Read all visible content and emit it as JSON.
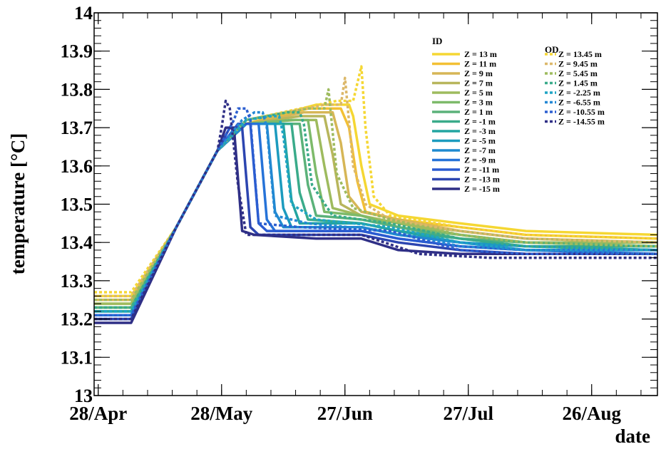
{
  "chart_data": {
    "type": "line",
    "xlabel": "date",
    "ylabel": "temperature [°C]",
    "x_range": [
      "2019-04-27",
      "2019-09-11"
    ],
    "xlim_note": "",
    "ylim": [
      13.0,
      14.0
    ],
    "y_ticks": [
      "13",
      "13.1",
      "13.2",
      "13.3",
      "13.4",
      "13.5",
      "13.6",
      "13.7",
      "13.8",
      "13.9",
      "14"
    ],
    "x_ticks": [
      {
        "label": "28/Apr",
        "date": "2019-04-28"
      },
      {
        "label": "28/May",
        "date": "2019-05-28"
      },
      {
        "label": "27/Jun",
        "date": "2019-06-27"
      },
      {
        "label": "27/Jul",
        "date": "2019-07-27"
      },
      {
        "label": "26/Aug",
        "date": "2019-08-26"
      }
    ],
    "grid": false,
    "legend": {
      "placement": "top-right",
      "groups": [
        {
          "title": "ID",
          "style": "solid"
        },
        {
          "title": "OD",
          "style": "dotted"
        }
      ]
    },
    "series": [
      {
        "name": "Z = 13 m",
        "group": "ID",
        "style": "solid",
        "color": "#f5d733",
        "x": [
          "2019-04-27",
          "2019-05-06",
          "2019-05-17",
          "2019-05-27",
          "2019-06-03",
          "2019-06-20",
          "2019-06-28",
          "2019-06-29",
          "2019-07-01",
          "2019-07-03",
          "2019-07-10",
          "2019-07-25",
          "2019-08-10",
          "2019-09-11"
        ],
        "y": [
          13.26,
          13.26,
          13.44,
          13.64,
          13.71,
          13.76,
          13.76,
          13.73,
          13.6,
          13.5,
          13.47,
          13.45,
          13.43,
          13.42
        ]
      },
      {
        "name": "Z = 11 m",
        "group": "ID",
        "style": "solid",
        "color": "#f3c034",
        "x": [
          "2019-04-27",
          "2019-05-06",
          "2019-05-17",
          "2019-05-27",
          "2019-06-03",
          "2019-06-18",
          "2019-06-26",
          "2019-06-28",
          "2019-06-30",
          "2019-07-02",
          "2019-07-10",
          "2019-07-25",
          "2019-08-10",
          "2019-09-11"
        ],
        "y": [
          13.25,
          13.25,
          13.44,
          13.64,
          13.71,
          13.75,
          13.75,
          13.7,
          13.56,
          13.48,
          13.46,
          13.44,
          13.42,
          13.41
        ]
      },
      {
        "name": "Z = 9 m",
        "group": "ID",
        "style": "solid",
        "color": "#d6b656",
        "x": [
          "2019-04-27",
          "2019-05-06",
          "2019-05-17",
          "2019-05-27",
          "2019-06-03",
          "2019-06-17",
          "2019-06-24",
          "2019-06-26",
          "2019-06-28",
          "2019-07-01",
          "2019-07-10",
          "2019-07-25",
          "2019-08-10",
          "2019-09-11"
        ],
        "y": [
          13.25,
          13.25,
          13.44,
          13.64,
          13.71,
          13.74,
          13.74,
          13.66,
          13.52,
          13.48,
          13.46,
          13.43,
          13.41,
          13.4
        ]
      },
      {
        "name": "Z = 7 m",
        "group": "ID",
        "style": "solid",
        "color": "#b8b65c",
        "x": [
          "2019-04-27",
          "2019-05-06",
          "2019-05-17",
          "2019-05-27",
          "2019-06-03",
          "2019-06-16",
          "2019-06-22",
          "2019-06-24",
          "2019-06-26",
          "2019-07-01",
          "2019-07-10",
          "2019-07-25",
          "2019-08-10",
          "2019-09-11"
        ],
        "y": [
          13.24,
          13.24,
          13.44,
          13.64,
          13.71,
          13.73,
          13.73,
          13.63,
          13.5,
          13.47,
          13.45,
          13.43,
          13.41,
          13.4
        ]
      },
      {
        "name": "Z = 5 m",
        "group": "ID",
        "style": "solid",
        "color": "#9ebb5e",
        "x": [
          "2019-04-27",
          "2019-05-06",
          "2019-05-17",
          "2019-05-27",
          "2019-06-03",
          "2019-06-15",
          "2019-06-20",
          "2019-06-22",
          "2019-06-24",
          "2019-07-01",
          "2019-07-10",
          "2019-07-25",
          "2019-08-10",
          "2019-09-11"
        ],
        "y": [
          13.24,
          13.24,
          13.44,
          13.64,
          13.71,
          13.72,
          13.72,
          13.6,
          13.49,
          13.47,
          13.45,
          13.42,
          13.4,
          13.4
        ]
      },
      {
        "name": "Z = 3 m",
        "group": "ID",
        "style": "solid",
        "color": "#7dba6a",
        "x": [
          "2019-04-27",
          "2019-05-06",
          "2019-05-17",
          "2019-05-27",
          "2019-06-03",
          "2019-06-14",
          "2019-06-18",
          "2019-06-20",
          "2019-06-22",
          "2019-07-01",
          "2019-07-10",
          "2019-07-25",
          "2019-08-10",
          "2019-09-11"
        ],
        "y": [
          13.23,
          13.23,
          13.44,
          13.64,
          13.71,
          13.72,
          13.72,
          13.58,
          13.48,
          13.47,
          13.44,
          13.42,
          13.4,
          13.39
        ]
      },
      {
        "name": "Z = 1 m",
        "group": "ID",
        "style": "solid",
        "color": "#5bb27a",
        "x": [
          "2019-04-27",
          "2019-05-06",
          "2019-05-17",
          "2019-05-27",
          "2019-06-03",
          "2019-06-12",
          "2019-06-16",
          "2019-06-18",
          "2019-06-20",
          "2019-07-01",
          "2019-07-10",
          "2019-07-25",
          "2019-08-10",
          "2019-09-11"
        ],
        "y": [
          13.23,
          13.23,
          13.44,
          13.64,
          13.71,
          13.71,
          13.71,
          13.55,
          13.47,
          13.46,
          13.44,
          13.41,
          13.4,
          13.39
        ]
      },
      {
        "name": "Z = -1 m",
        "group": "ID",
        "style": "solid",
        "color": "#3aab8a",
        "x": [
          "2019-04-27",
          "2019-05-06",
          "2019-05-17",
          "2019-05-27",
          "2019-06-03",
          "2019-06-11",
          "2019-06-14",
          "2019-06-16",
          "2019-06-18",
          "2019-07-01",
          "2019-07-10",
          "2019-07-25",
          "2019-08-10",
          "2019-09-11"
        ],
        "y": [
          13.22,
          13.22,
          13.44,
          13.64,
          13.71,
          13.71,
          13.71,
          13.53,
          13.46,
          13.45,
          13.43,
          13.41,
          13.39,
          13.39
        ]
      },
      {
        "name": "Z = -3 m",
        "group": "ID",
        "style": "solid",
        "color": "#23a5a1",
        "x": [
          "2019-04-27",
          "2019-05-06",
          "2019-05-17",
          "2019-05-27",
          "2019-06-03",
          "2019-06-09",
          "2019-06-12",
          "2019-06-14",
          "2019-06-16",
          "2019-07-01",
          "2019-07-10",
          "2019-07-25",
          "2019-08-10",
          "2019-09-11"
        ],
        "y": [
          13.22,
          13.22,
          13.44,
          13.64,
          13.71,
          13.71,
          13.71,
          13.51,
          13.45,
          13.45,
          13.43,
          13.4,
          13.39,
          13.38
        ]
      },
      {
        "name": "Z = -5 m",
        "group": "ID",
        "style": "solid",
        "color": "#1c9bbe",
        "x": [
          "2019-04-27",
          "2019-05-06",
          "2019-05-17",
          "2019-05-27",
          "2019-06-03",
          "2019-06-08",
          "2019-06-10",
          "2019-06-12",
          "2019-06-14",
          "2019-07-01",
          "2019-07-10",
          "2019-07-25",
          "2019-08-10",
          "2019-09-11"
        ],
        "y": [
          13.21,
          13.21,
          13.44,
          13.64,
          13.71,
          13.71,
          13.71,
          13.49,
          13.44,
          13.44,
          13.42,
          13.4,
          13.39,
          13.38
        ]
      },
      {
        "name": "Z = -7 m",
        "group": "ID",
        "style": "solid",
        "color": "#1f8ad0",
        "x": [
          "2019-04-27",
          "2019-05-06",
          "2019-05-17",
          "2019-05-27",
          "2019-06-03",
          "2019-06-06",
          "2019-06-08",
          "2019-06-10",
          "2019-06-12",
          "2019-07-01",
          "2019-07-10",
          "2019-07-25",
          "2019-08-10",
          "2019-09-11"
        ],
        "y": [
          13.21,
          13.21,
          13.44,
          13.64,
          13.71,
          13.71,
          13.71,
          13.48,
          13.44,
          13.44,
          13.42,
          13.4,
          13.38,
          13.38
        ]
      },
      {
        "name": "Z = -9 m",
        "group": "ID",
        "style": "solid",
        "color": "#2673d8",
        "x": [
          "2019-04-27",
          "2019-05-06",
          "2019-05-17",
          "2019-05-27",
          "2019-06-02",
          "2019-06-04",
          "2019-06-06",
          "2019-06-08",
          "2019-06-10",
          "2019-07-01",
          "2019-07-10",
          "2019-07-25",
          "2019-08-10",
          "2019-09-11"
        ],
        "y": [
          13.21,
          13.21,
          13.44,
          13.64,
          13.71,
          13.71,
          13.71,
          13.46,
          13.43,
          13.43,
          13.41,
          13.39,
          13.38,
          13.38
        ]
      },
      {
        "name": "Z = -11 m",
        "group": "ID",
        "style": "solid",
        "color": "#2a5bd1",
        "x": [
          "2019-04-27",
          "2019-05-06",
          "2019-05-17",
          "2019-05-27",
          "2019-06-01",
          "2019-06-02",
          "2019-06-04",
          "2019-06-06",
          "2019-06-08",
          "2019-07-01",
          "2019-07-10",
          "2019-07-25",
          "2019-08-10",
          "2019-09-11"
        ],
        "y": [
          13.2,
          13.2,
          13.44,
          13.64,
          13.71,
          13.71,
          13.71,
          13.45,
          13.43,
          13.43,
          13.41,
          13.39,
          13.38,
          13.37
        ]
      },
      {
        "name": "Z = -13 m",
        "group": "ID",
        "style": "solid",
        "color": "#2c45b0",
        "x": [
          "2019-04-27",
          "2019-05-06",
          "2019-05-17",
          "2019-05-27",
          "2019-05-30",
          "2019-05-31",
          "2019-06-02",
          "2019-06-04",
          "2019-06-06",
          "2019-07-01",
          "2019-07-10",
          "2019-07-25",
          "2019-08-10",
          "2019-09-11"
        ],
        "y": [
          13.2,
          13.2,
          13.44,
          13.64,
          13.7,
          13.7,
          13.7,
          13.44,
          13.42,
          13.42,
          13.4,
          13.38,
          13.37,
          13.37
        ]
      },
      {
        "name": "Z = -15 m",
        "group": "ID",
        "style": "solid",
        "color": "#2f2f86",
        "x": [
          "2019-04-27",
          "2019-05-06",
          "2019-05-17",
          "2019-05-27",
          "2019-05-29",
          "2019-05-30",
          "2019-05-31",
          "2019-06-02",
          "2019-06-05",
          "2019-06-20",
          "2019-07-01",
          "2019-07-10",
          "2019-07-25",
          "2019-09-11"
        ],
        "y": [
          13.19,
          13.19,
          13.44,
          13.64,
          13.7,
          13.7,
          13.7,
          13.43,
          13.42,
          13.41,
          13.41,
          13.38,
          13.37,
          13.37
        ]
      },
      {
        "name": "Z = 13.45 m",
        "group": "OD",
        "style": "dotted",
        "color": "#f5d733",
        "x": [
          "2019-04-27",
          "2019-05-06",
          "2019-05-17",
          "2019-05-27",
          "2019-06-03",
          "2019-06-25",
          "2019-06-29",
          "2019-07-01",
          "2019-07-02",
          "2019-07-04",
          "2019-07-08",
          "2019-07-25",
          "2019-08-10",
          "2019-09-11"
        ],
        "y": [
          13.27,
          13.27,
          13.44,
          13.64,
          13.72,
          13.77,
          13.77,
          13.86,
          13.7,
          13.52,
          13.47,
          13.44,
          13.42,
          13.41
        ]
      },
      {
        "name": "Z = 9.45 m",
        "group": "OD",
        "style": "dotted",
        "color": "#dcb86a",
        "x": [
          "2019-04-27",
          "2019-05-06",
          "2019-05-17",
          "2019-05-27",
          "2019-06-03",
          "2019-06-22",
          "2019-06-26",
          "2019-06-27",
          "2019-06-29",
          "2019-07-02",
          "2019-07-08",
          "2019-07-25",
          "2019-08-10",
          "2019-09-11"
        ],
        "y": [
          13.26,
          13.26,
          13.44,
          13.64,
          13.72,
          13.76,
          13.76,
          13.83,
          13.6,
          13.5,
          13.46,
          13.43,
          13.41,
          13.4
        ]
      },
      {
        "name": "Z = 5.45 m",
        "group": "OD",
        "style": "dotted",
        "color": "#9ebb5e",
        "x": [
          "2019-04-27",
          "2019-05-06",
          "2019-05-17",
          "2019-05-27",
          "2019-06-03",
          "2019-06-18",
          "2019-06-22",
          "2019-06-23",
          "2019-06-25",
          "2019-06-29",
          "2019-07-08",
          "2019-07-25",
          "2019-08-10",
          "2019-09-11"
        ],
        "y": [
          13.25,
          13.25,
          13.44,
          13.64,
          13.72,
          13.75,
          13.75,
          13.8,
          13.58,
          13.49,
          13.46,
          13.42,
          13.4,
          13.39
        ]
      },
      {
        "name": "Z = 1.45 m",
        "group": "OD",
        "style": "dotted",
        "color": "#3aab8a",
        "x": [
          "2019-04-27",
          "2019-05-06",
          "2019-05-17",
          "2019-05-27",
          "2019-06-03",
          "2019-06-13",
          "2019-06-16",
          "2019-06-17",
          "2019-06-19",
          "2019-06-24",
          "2019-07-08",
          "2019-07-25",
          "2019-08-10",
          "2019-09-11"
        ],
        "y": [
          13.23,
          13.23,
          13.44,
          13.64,
          13.72,
          13.74,
          13.74,
          13.71,
          13.55,
          13.47,
          13.45,
          13.41,
          13.39,
          13.38
        ]
      },
      {
        "name": "Z = -2.25 m",
        "group": "OD",
        "style": "dotted",
        "color": "#1fa4c4",
        "x": [
          "2019-04-27",
          "2019-05-06",
          "2019-05-17",
          "2019-05-27",
          "2019-06-03",
          "2019-06-09",
          "2019-06-11",
          "2019-06-12",
          "2019-06-14",
          "2019-06-20",
          "2019-07-08",
          "2019-07-25",
          "2019-08-10",
          "2019-09-11"
        ],
        "y": [
          13.22,
          13.22,
          13.44,
          13.64,
          13.72,
          13.73,
          13.73,
          13.68,
          13.5,
          13.46,
          13.44,
          13.4,
          13.38,
          13.38
        ]
      },
      {
        "name": "Z = -6.55 m",
        "group": "OD",
        "style": "dotted",
        "color": "#2488d4",
        "x": [
          "2019-04-27",
          "2019-05-06",
          "2019-05-17",
          "2019-05-27",
          "2019-06-02",
          "2019-06-05",
          "2019-06-07",
          "2019-06-08",
          "2019-06-10",
          "2019-06-18",
          "2019-07-08",
          "2019-07-25",
          "2019-08-10",
          "2019-09-11"
        ],
        "y": [
          13.21,
          13.21,
          13.44,
          13.64,
          13.72,
          13.74,
          13.74,
          13.7,
          13.47,
          13.45,
          13.43,
          13.39,
          13.38,
          13.37
        ]
      },
      {
        "name": "Z = -10.55 m",
        "group": "OD",
        "style": "dotted",
        "color": "#2c5fd0",
        "x": [
          "2019-04-27",
          "2019-05-06",
          "2019-05-17",
          "2019-05-27",
          "2019-05-31",
          "2019-06-01",
          "2019-06-03",
          "2019-06-04",
          "2019-06-06",
          "2019-06-16",
          "2019-07-08",
          "2019-07-25",
          "2019-08-10",
          "2019-09-11"
        ],
        "y": [
          13.21,
          13.21,
          13.44,
          13.64,
          13.72,
          13.75,
          13.75,
          13.72,
          13.45,
          13.44,
          13.43,
          13.38,
          13.37,
          13.37
        ]
      },
      {
        "name": "Z = -14.55 m",
        "group": "OD",
        "style": "dotted",
        "color": "#2f2f86",
        "x": [
          "2019-04-27",
          "2019-05-06",
          "2019-05-17",
          "2019-05-27",
          "2019-05-28",
          "2019-05-29",
          "2019-05-30",
          "2019-06-01",
          "2019-06-03",
          "2019-06-10",
          "2019-07-01",
          "2019-07-15",
          "2019-08-01",
          "2019-09-11"
        ],
        "y": [
          13.2,
          13.2,
          13.44,
          13.64,
          13.7,
          13.77,
          13.75,
          13.55,
          13.42,
          13.42,
          13.42,
          13.37,
          13.36,
          13.36
        ]
      }
    ]
  }
}
